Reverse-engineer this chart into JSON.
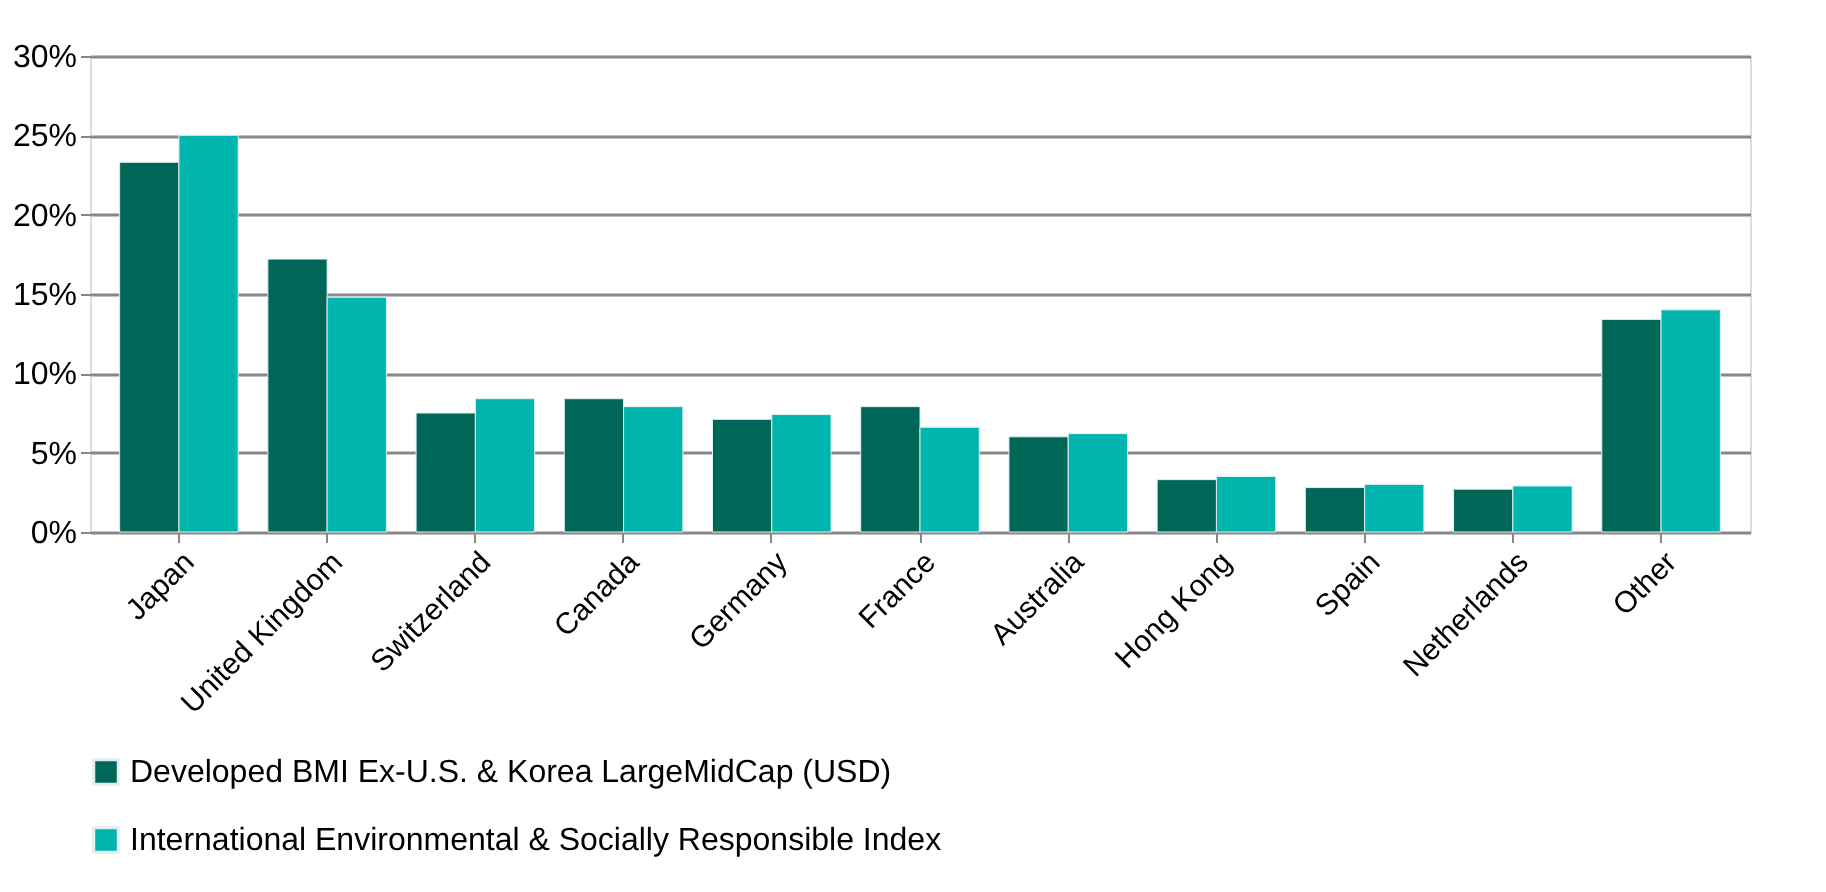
{
  "chart_data": {
    "type": "bar",
    "categories": [
      "Japan",
      "United Kingdom",
      "Switzerland",
      "Canada",
      "Germany",
      "France",
      "Australia",
      "Hong Kong",
      "Spain",
      "Netherlands",
      "Other"
    ],
    "series": [
      {
        "name": "Developed BMI Ex-U.S. & Korea LargeMidCap (USD)",
        "color": "#006658",
        "values": [
          23.3,
          17.2,
          7.5,
          8.4,
          7.1,
          7.9,
          6.0,
          3.3,
          2.8,
          2.7,
          13.4
        ]
      },
      {
        "name": "International Environmental & Socially Responsible Index",
        "color": "#00b5ad",
        "values": [
          25.0,
          14.8,
          8.4,
          7.9,
          7.4,
          6.6,
          6.2,
          3.5,
          3.0,
          2.9,
          14.0
        ]
      }
    ],
    "ylim": [
      0,
      30
    ],
    "yticks": [
      {
        "value": 0,
        "label": "0%"
      },
      {
        "value": 5,
        "label": "5%"
      },
      {
        "value": 10,
        "label": "10%"
      },
      {
        "value": 15,
        "label": "15%"
      },
      {
        "value": 20,
        "label": "20%"
      },
      {
        "value": 25,
        "label": "25%"
      },
      {
        "value": 30,
        "label": "30%"
      }
    ],
    "grid": "y",
    "legend": "bottom"
  }
}
